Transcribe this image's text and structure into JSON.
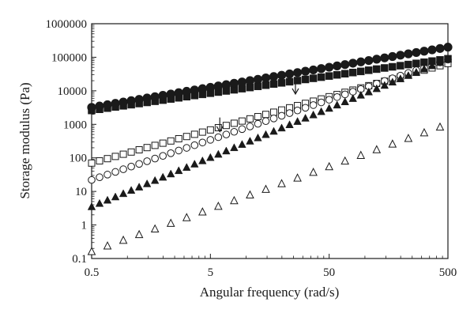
{
  "chart_data": {
    "type": "scatter",
    "title": "",
    "xlabel": "Angular frequency (rad/s)",
    "ylabel": "Storage modulus (Pa)",
    "xscale": "log",
    "yscale": "log",
    "xlim": [
      0.5,
      500
    ],
    "ylim": [
      0.1,
      1000000
    ],
    "x_ticks": [
      0.5,
      5,
      50,
      500
    ],
    "x_tick_labels": [
      "0.5",
      "5",
      "50",
      "500"
    ],
    "y_ticks": [
      0.1,
      1,
      10,
      100,
      1000,
      10000,
      100000,
      1000000
    ],
    "y_tick_labels": [
      "0.1",
      "1",
      "10",
      "100",
      "1000",
      "10000",
      "100000",
      "1000000"
    ],
    "grid": false,
    "points_per_series": 46,
    "series": [
      {
        "marker": "filled-circle",
        "y_start": 3200,
        "y_end": 200000
      },
      {
        "marker": "filled-square",
        "y_start": 2600,
        "y_end": 90000
      },
      {
        "marker": "open-circle",
        "y_start": 22,
        "y_end": 85000
      },
      {
        "marker": "open-square",
        "y_start": 70,
        "y_end": 65000
      },
      {
        "marker": "filled-triangle",
        "y_start": 3.5,
        "y_end": 88000
      },
      {
        "marker": "open-triangle",
        "y_start": 0.16,
        "y_end": 1000
      }
    ],
    "annotations": [
      {
        "type": "arrow-down",
        "x": 6.0,
        "y_top": 1600,
        "y_tip": 600
      },
      {
        "type": "arrow-down",
        "x": 26.0,
        "y_top": 20000,
        "y_tip": 8000
      }
    ]
  }
}
